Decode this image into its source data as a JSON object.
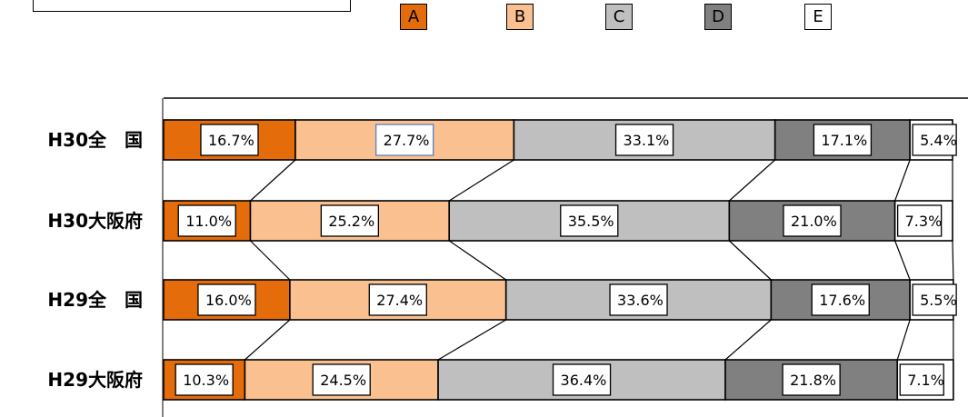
{
  "chart_data": {
    "type": "bar",
    "orientation": "horizontal",
    "stacked": "percent",
    "categories": [
      "H30全　国",
      "H30大阪府",
      "H29全　国",
      "H29大阪府"
    ],
    "series": [
      {
        "name": "A",
        "color": "#E46C0A",
        "values": [
          16.7,
          11.0,
          16.0,
          10.3
        ],
        "labels": [
          "16.7%",
          "11.0%",
          "16.0%",
          "10.3%"
        ]
      },
      {
        "name": "B",
        "color": "#FAC090",
        "values": [
          27.7,
          25.2,
          27.4,
          24.5
        ],
        "labels": [
          "27.7%",
          "25.2%",
          "27.4%",
          "24.5%"
        ]
      },
      {
        "name": "C",
        "color": "#BFBFBF",
        "values": [
          33.1,
          35.5,
          33.6,
          36.4
        ],
        "labels": [
          "33.1%",
          "35.5%",
          "33.6%",
          "36.4%"
        ]
      },
      {
        "name": "D",
        "color": "#808080",
        "values": [
          17.1,
          21.0,
          17.6,
          21.8
        ],
        "labels": [
          "17.1%",
          "21.0%",
          "17.6%",
          "21.8%"
        ]
      },
      {
        "name": "E",
        "color": "#FFFFFF",
        "values": [
          5.4,
          7.3,
          5.5,
          7.1
        ],
        "labels": [
          "5.4%",
          "7.3%",
          "5.5%",
          "7.1%"
        ]
      }
    ],
    "xlim": [
      0,
      100
    ],
    "legend_position": "top",
    "series_lines": true,
    "grid": false
  }
}
